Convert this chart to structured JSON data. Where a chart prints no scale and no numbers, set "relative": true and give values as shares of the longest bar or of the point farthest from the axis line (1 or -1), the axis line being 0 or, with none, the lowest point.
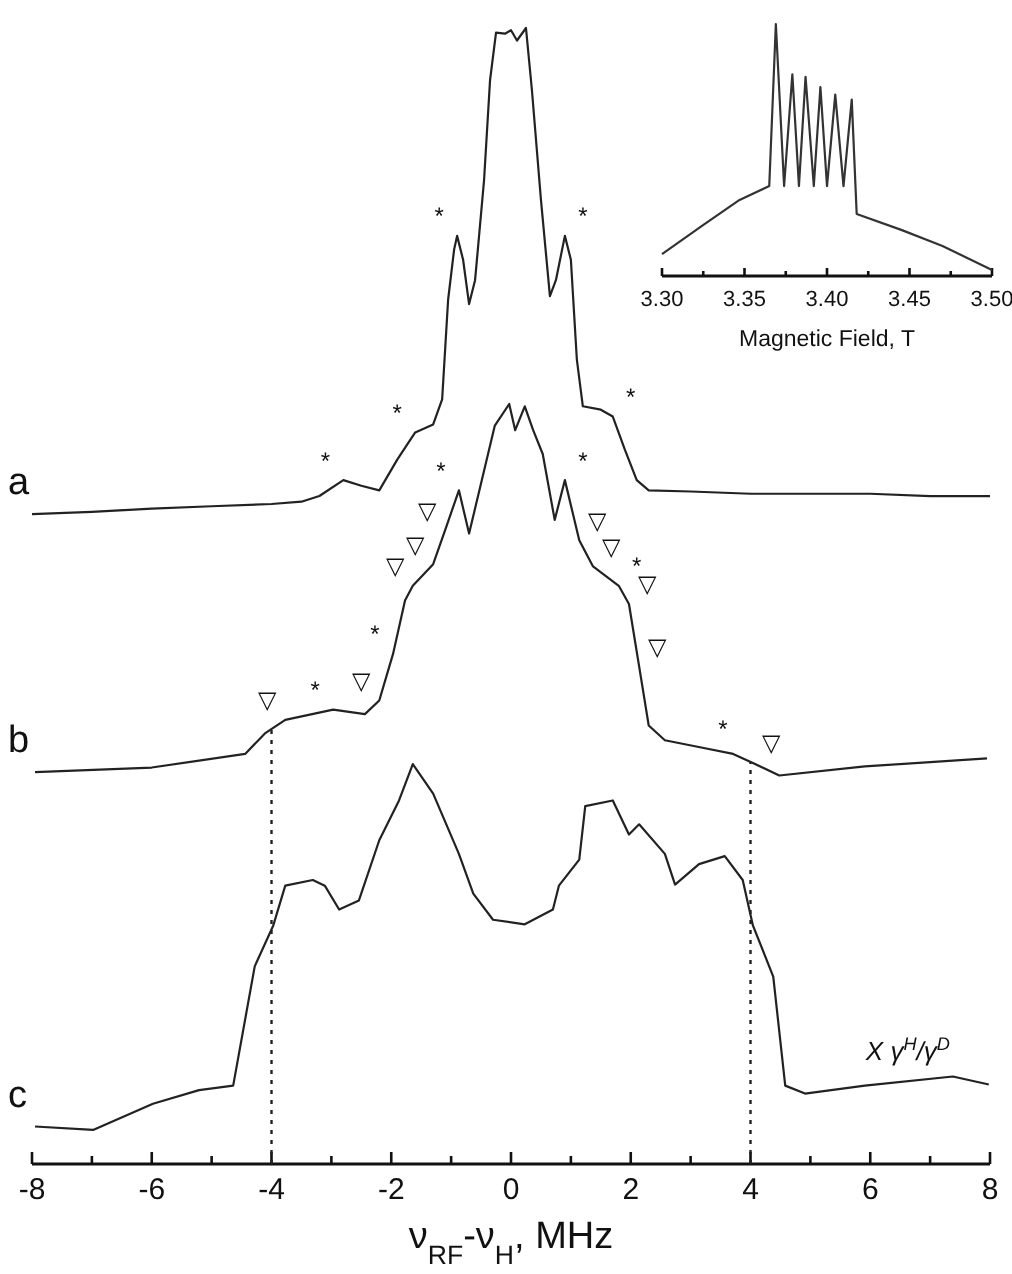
{
  "chart_data": [
    {
      "type": "line",
      "relative": true,
      "xlabel": "ν$_{RF}$-ν$_{H}$, MHz",
      "xlim": [
        -8,
        8
      ],
      "xticks": [
        -8,
        {
          "value": -7,
          "label": null
        },
        -6,
        {
          "value": -5,
          "label": null
        },
        -4,
        {
          "value": -3,
          "label": null
        },
        -2,
        {
          "value": -1,
          "label": null
        },
        0,
        {
          "value": 1,
          "label": null
        },
        2,
        {
          "value": 3,
          "label": null
        },
        4,
        {
          "value": 5,
          "label": null
        },
        6,
        {
          "value": 7,
          "label": null
        },
        8
      ],
      "grid": false,
      "marker": "none",
      "line_style": "solid",
      "series": [
        {
          "name": "a",
          "color": "#222222",
          "x": [
            -8,
            -7,
            -6,
            -5,
            -4,
            -3.5,
            -3.2,
            -2.8,
            -2.5,
            -2.2,
            -1.9,
            -1.6,
            -1.3,
            -1.15,
            -1.05,
            -0.95,
            -0.9,
            -0.8,
            -0.7,
            -0.6,
            -0.45,
            -0.35,
            -0.25,
            -0.1,
            0,
            0.1,
            0.25,
            0.35,
            0.5,
            0.65,
            0.75,
            0.9,
            1.0,
            1.1,
            1.2,
            1.5,
            1.7,
            1.9,
            2.1,
            2.3,
            3,
            4,
            5,
            6,
            7,
            8
          ],
          "values": [
            0.572,
            0.574,
            0.577,
            0.579,
            0.581,
            0.583,
            0.588,
            0.602,
            0.597,
            0.593,
            0.62,
            0.644,
            0.651,
            0.673,
            0.761,
            0.805,
            0.817,
            0.796,
            0.757,
            0.778,
            0.866,
            0.954,
            0.996,
            0.995,
            0.998,
            0.989,
            1,
            0.945,
            0.849,
            0.764,
            0.778,
            0.817,
            0.796,
            0.708,
            0.667,
            0.664,
            0.658,
            0.629,
            0.602,
            0.593,
            0.592,
            0.59,
            0.59,
            0.59,
            0.588,
            0.588
          ]
        },
        {
          "name": "b",
          "color": "#222222",
          "x": [
            -7.95,
            -6,
            -4.44,
            -4.11,
            -3.77,
            -2.97,
            -2.44,
            -2.2,
            -1.97,
            -1.77,
            -1.64,
            -1.3,
            -1.1,
            -0.87,
            -0.7,
            -0.27,
            -0.03,
            0.07,
            0.23,
            0.37,
            0.53,
            0.73,
            0.9,
            1.14,
            1.37,
            1.8,
            1.97,
            2.14,
            2.3,
            2.57,
            3.24,
            3.71,
            4.04,
            4.48,
            5.91,
            7.95
          ],
          "values": [
            0.345,
            0.349,
            0.361,
            0.379,
            0.391,
            0.4,
            0.396,
            0.408,
            0.449,
            0.496,
            0.509,
            0.528,
            0.558,
            0.593,
            0.555,
            0.65,
            0.669,
            0.646,
            0.667,
            0.646,
            0.625,
            0.567,
            0.602,
            0.549,
            0.526,
            0.509,
            0.493,
            0.438,
            0.386,
            0.373,
            0.366,
            0.361,
            0.353,
            0.342,
            0.35,
            0.357
          ]
        },
        {
          "name": "c",
          "color": "#222222",
          "x": [
            -7.95,
            -6.98,
            -5.98,
            -5.21,
            -4.64,
            -4.28,
            -3.97,
            -3.77,
            -3.31,
            -3.11,
            -2.87,
            -2.54,
            -2.2,
            -1.87,
            -1.64,
            -1.3,
            -0.87,
            -0.63,
            -0.3,
            0.23,
            0.7,
            0.8,
            1.14,
            1.24,
            1.7,
            1.97,
            2.14,
            2.57,
            2.74,
            3.14,
            3.57,
            3.87,
            4.04,
            4.38,
            4.58,
            4.91,
            5.91,
            7.38,
            7.98
          ],
          "values": [
            0.033,
            0.03,
            0.053,
            0.065,
            0.069,
            0.174,
            0.21,
            0.245,
            0.25,
            0.245,
            0.224,
            0.232,
            0.285,
            0.32,
            0.352,
            0.326,
            0.273,
            0.238,
            0.215,
            0.211,
            0.224,
            0.245,
            0.268,
            0.315,
            0.32,
            0.29,
            0.299,
            0.273,
            0.246,
            0.264,
            0.271,
            0.25,
            0.21,
            0.165,
            0.069,
            0.062,
            0.069,
            0.077,
            0.07
          ]
        }
      ],
      "ref_lines": [
        {
          "axis": "x",
          "value": -4,
          "line_style": "dotted",
          "color": "#222222"
        },
        {
          "axis": "x",
          "value": 4,
          "line_style": "dotted",
          "color": "#222222"
        }
      ],
      "annotations": [
        {
          "text": "*",
          "x": -2.8,
          "y": 0.602
        },
        {
          "text": "*",
          "x": -1.6,
          "y": 0.644
        },
        {
          "text": "*",
          "x": -0.9,
          "y": 0.817
        },
        {
          "text": "*",
          "x": 0.9,
          "y": 0.817
        },
        {
          "text": "*",
          "x": 1.7,
          "y": 0.658
        },
        {
          "text": "*",
          "x": -0.87,
          "y": 0.593
        },
        {
          "text": "*",
          "x": 0.9,
          "y": 0.602
        },
        {
          "text": "*",
          "x": -1.97,
          "y": 0.449
        },
        {
          "text": "*",
          "x": 1.8,
          "y": 0.509
        },
        {
          "text": "*",
          "x": -2.97,
          "y": 0.4
        },
        {
          "text": "*",
          "x": 3.24,
          "y": 0.366
        },
        {
          "text": "▽",
          "x": -1.1,
          "y": 0.558
        },
        {
          "text": "▽",
          "x": -1.3,
          "y": 0.528
        },
        {
          "text": "▽",
          "x": -1.64,
          "y": 0.509
        },
        {
          "text": "▽",
          "x": -2.2,
          "y": 0.408
        },
        {
          "text": "▽",
          "x": -3.77,
          "y": 0.391
        },
        {
          "text": "▽",
          "x": 1.14,
          "y": 0.549
        },
        {
          "text": "▽",
          "x": 1.37,
          "y": 0.526
        },
        {
          "text": "▽",
          "x": 1.97,
          "y": 0.493
        },
        {
          "text": "▽",
          "x": 2.14,
          "y": 0.438
        },
        {
          "text": "▽",
          "x": 4.04,
          "y": 0.353
        },
        "X γ$^{H}$/γ$^{D}$"
      ]
    },
    {
      "type": "line",
      "relative": true,
      "xlabel": "Magnetic Field, T",
      "xlim": [
        3.3,
        3.5
      ],
      "xticks": [
        {
          "value": 3.3,
          "label": "3.30"
        },
        {
          "value": 3.325,
          "label": null
        },
        {
          "value": 3.35,
          "label": "3.35"
        },
        {
          "value": 3.375,
          "label": null
        },
        {
          "value": 3.4,
          "label": "3.40"
        },
        {
          "value": 3.425,
          "label": null
        },
        {
          "value": 3.45,
          "label": "3.45"
        },
        {
          "value": 3.475,
          "label": null
        },
        {
          "value": 3.5,
          "label": "3.50"
        }
      ],
      "grid": false,
      "marker": "none",
      "line_style": "solid",
      "series": [
        {
          "color": "#333333",
          "x": [
            3.3,
            3.324,
            3.347,
            3.365,
            3.369,
            3.374,
            3.379,
            3.383,
            3.387,
            3.392,
            3.396,
            3.4,
            3.405,
            3.41,
            3.415,
            3.418,
            3.445,
            3.47,
            3.5
          ],
          "values": [
            0.087,
            0.198,
            0.302,
            0.357,
            1,
            0.357,
            0.8,
            0.357,
            0.79,
            0.357,
            0.75,
            0.357,
            0.72,
            0.357,
            0.7,
            0.246,
            0.183,
            0.119,
            0.024
          ]
        }
      ]
    }
  ]
}
